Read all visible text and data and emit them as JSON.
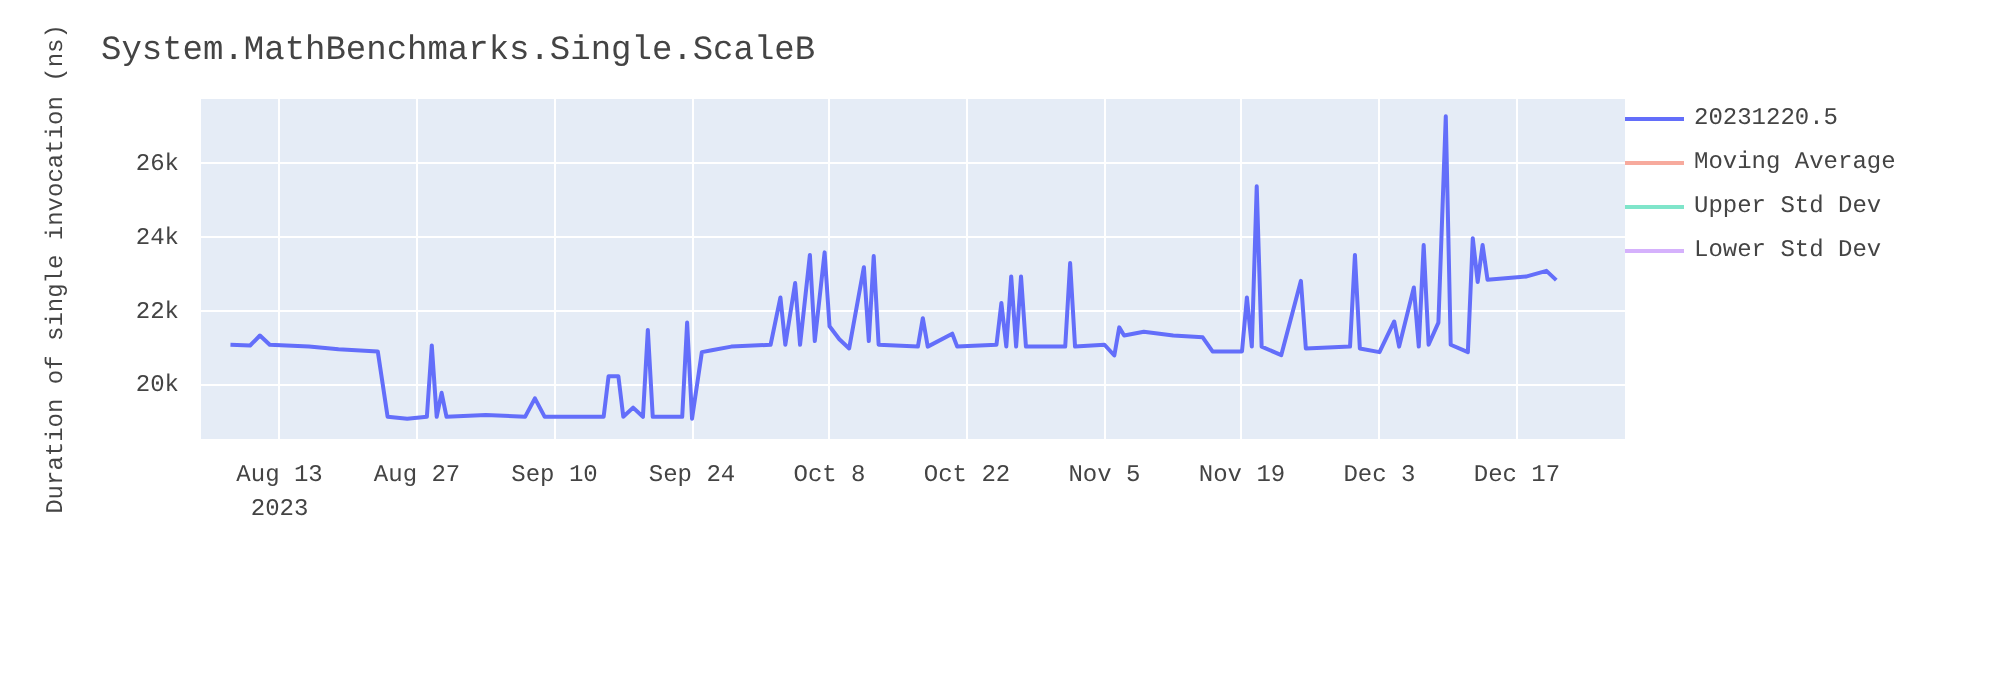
{
  "chart_data": {
    "type": "line",
    "title": "System.MathBenchmarks.Single.ScaleB",
    "ylabel": "Duration of single invocation (ns)",
    "xlim": [
      "2023-08-05",
      "2023-12-28"
    ],
    "ylim": [
      18550,
      27750
    ],
    "xticks": [
      {
        "value": "2023-08-13",
        "label": "Aug 13\n2023"
      },
      {
        "value": "2023-08-27",
        "label": "Aug 27"
      },
      {
        "value": "2023-09-10",
        "label": "Sep 10"
      },
      {
        "value": "2023-09-24",
        "label": "Sep 24"
      },
      {
        "value": "2023-10-08",
        "label": "Oct 8"
      },
      {
        "value": "2023-10-22",
        "label": "Oct 22"
      },
      {
        "value": "2023-11-05",
        "label": "Nov 5"
      },
      {
        "value": "2023-11-19",
        "label": "Nov 19"
      },
      {
        "value": "2023-12-03",
        "label": "Dec 3"
      },
      {
        "value": "2023-12-17",
        "label": "Dec 17"
      }
    ],
    "yticks": [
      {
        "value": 20000,
        "label": "20k"
      },
      {
        "value": 22000,
        "label": "22k"
      },
      {
        "value": 24000,
        "label": "24k"
      },
      {
        "value": 26000,
        "label": "26k"
      }
    ],
    "grid": true,
    "legend": "top right",
    "marker": "none",
    "line_style": "solid",
    "series": [
      {
        "name": "20231220.5",
        "color": "#636efa",
        "x": [
          "2023-08-08",
          "2023-08-10",
          "2023-08-11",
          "2023-08-12",
          "2023-08-16",
          "2023-08-19",
          "2023-08-23",
          "2023-08-24",
          "2023-08-26",
          "2023-08-28",
          "2023-08-28T12:00",
          "2023-08-29",
          "2023-08-29T12:00",
          "2023-08-30",
          "2023-09-03",
          "2023-09-07",
          "2023-09-08",
          "2023-09-09",
          "2023-09-15",
          "2023-09-15T12:00",
          "2023-09-16T12:00",
          "2023-09-17",
          "2023-09-18",
          "2023-09-19",
          "2023-09-19T12:00",
          "2023-09-20",
          "2023-09-23",
          "2023-09-23T12:00",
          "2023-09-24",
          "2023-09-25",
          "2023-09-26",
          "2023-09-28",
          "2023-10-02",
          "2023-10-03",
          "2023-10-03T12:00",
          "2023-10-04T12:00",
          "2023-10-05",
          "2023-10-06",
          "2023-10-06T12:00",
          "2023-10-07T12:00",
          "2023-10-08",
          "2023-10-09",
          "2023-10-10",
          "2023-10-11T12:00",
          "2023-10-12",
          "2023-10-12T12:00",
          "2023-10-13",
          "2023-10-17",
          "2023-10-17T12:00",
          "2023-10-18",
          "2023-10-20T12:00",
          "2023-10-21",
          "2023-10-25",
          "2023-10-25T12:00",
          "2023-10-26",
          "2023-10-26T12:00",
          "2023-10-27",
          "2023-10-27T12:00",
          "2023-10-28",
          "2023-11-01",
          "2023-11-01T12:00",
          "2023-11-02",
          "2023-11-05",
          "2023-11-06",
          "2023-11-06T12:00",
          "2023-11-07",
          "2023-11-09",
          "2023-11-12",
          "2023-11-15",
          "2023-11-16",
          "2023-11-19",
          "2023-11-19T12:00",
          "2023-11-20",
          "2023-11-20T12:00",
          "2023-11-21",
          "2023-11-23",
          "2023-11-25",
          "2023-11-25T12:00",
          "2023-11-30",
          "2023-11-30T12:00",
          "2023-12-01",
          "2023-12-03",
          "2023-12-04T12:00",
          "2023-12-05",
          "2023-12-06T12:00",
          "2023-12-07",
          "2023-12-07T12:00",
          "2023-12-08",
          "2023-12-09",
          "2023-12-09T18:00",
          "2023-12-10T06:00",
          "2023-12-12",
          "2023-12-12T12:00",
          "2023-12-13",
          "2023-12-13T12:00",
          "2023-12-14",
          "2023-12-18",
          "2023-12-20",
          "2023-12-21"
        ],
        "values": [
          21100,
          21080,
          21350,
          21100,
          21050,
          20980,
          20920,
          19150,
          19100,
          19150,
          21080,
          19150,
          19800,
          19150,
          19200,
          19150,
          19650,
          19150,
          19150,
          20250,
          20250,
          19150,
          19400,
          19150,
          21500,
          19150,
          19150,
          21700,
          19100,
          20900,
          20950,
          21050,
          21100,
          22380,
          21100,
          22770,
          21100,
          23530,
          21200,
          23600,
          21600,
          21250,
          21000,
          23200,
          21200,
          23500,
          21100,
          21050,
          21820,
          21050,
          21400,
          21050,
          21100,
          22230,
          21050,
          22950,
          21050,
          22950,
          21050,
          21050,
          23310,
          21050,
          21100,
          20810,
          21570,
          21350,
          21450,
          21350,
          21300,
          20920,
          20920,
          22380,
          21050,
          25390,
          21050,
          20820,
          22830,
          21000,
          21050,
          23530,
          21000,
          20900,
          21730,
          21050,
          22650,
          21050,
          23800,
          21100,
          21700,
          27280,
          21100,
          20900,
          23980,
          22800,
          23800,
          22860,
          22950,
          23100,
          22850
        ]
      },
      {
        "name": "Moving Average",
        "color": "#ef553b"
      },
      {
        "name": "Upper Std Dev",
        "color": "#00cc96"
      },
      {
        "name": "Lower Std Dev",
        "color": "#ab63fa"
      }
    ]
  }
}
